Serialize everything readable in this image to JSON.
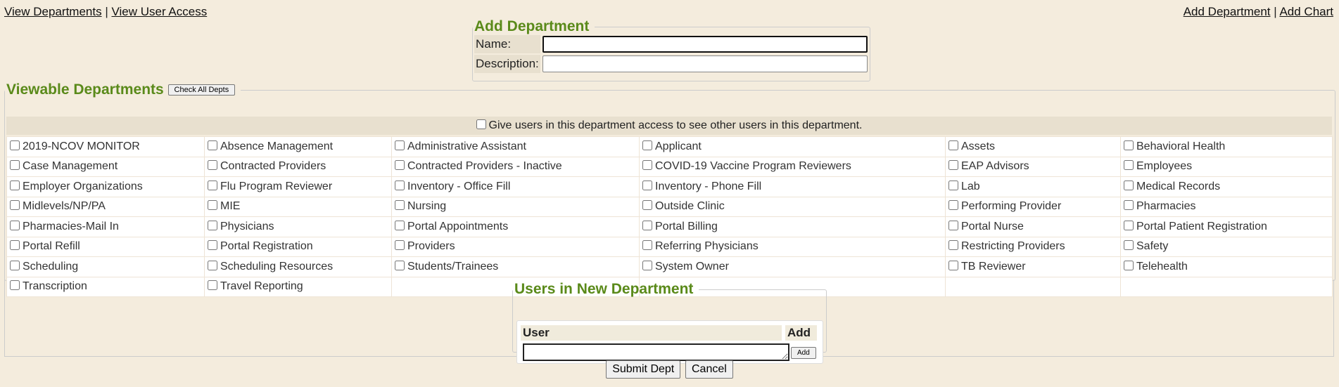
{
  "nav_left": {
    "view_departments": "View Departments",
    "sep": "|",
    "view_user_access": "View User Access"
  },
  "nav_right": {
    "add_department": "Add Department",
    "sep": "|",
    "add_chart": "Add Chart"
  },
  "add_department": {
    "legend": "Add Department",
    "name_label": "Name:",
    "name_value": "",
    "description_label": "Description:",
    "description_value": ""
  },
  "viewable": {
    "legend": "Viewable Departments",
    "check_all": "Check All Depts",
    "access_label": "Give users in this department access to see other users in this department.",
    "rows": [
      [
        "2019-NCOV MONITOR",
        "Absence Management",
        "Administrative Assistant",
        "Applicant",
        "Assets",
        "Behavioral Health"
      ],
      [
        "Case Management",
        "Contracted Providers",
        "Contracted Providers - Inactive",
        "COVID-19 Vaccine Program Reviewers",
        "EAP Advisors",
        "Employees"
      ],
      [
        "Employer Organizations",
        "Flu Program Reviewer",
        "Inventory - Office Fill",
        "Inventory - Phone Fill",
        "Lab",
        "Medical Records"
      ],
      [
        "Midlevels/NP/PA",
        "MIE",
        "Nursing",
        "Outside Clinic",
        "Performing Provider",
        "Pharmacies"
      ],
      [
        "Pharmacies-Mail In",
        "Physicians",
        "Portal Appointments",
        "Portal Billing",
        "Portal Nurse",
        "Portal Patient Registration"
      ],
      [
        "Portal Refill",
        "Portal Registration",
        "Providers",
        "Referring Physicians",
        "Restricting Providers",
        "Safety"
      ],
      [
        "Scheduling",
        "Scheduling Resources",
        "Students/Trainees",
        "System Owner",
        "TB Reviewer",
        "Telehealth"
      ],
      [
        "Transcription",
        "Travel Reporting",
        "",
        "",
        "",
        ""
      ]
    ]
  },
  "users": {
    "legend": "Users in New Department",
    "col_user": "User",
    "col_add": "Add",
    "add_button": "Add"
  },
  "actions": {
    "submit": "Submit Dept",
    "cancel": "Cancel"
  }
}
